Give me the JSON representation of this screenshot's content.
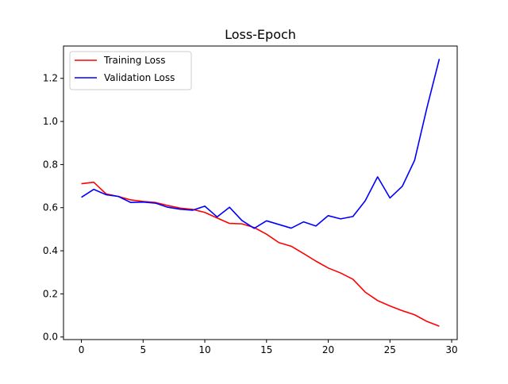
{
  "chart_data": {
    "type": "line",
    "title": "Loss-Epoch",
    "xlabel": "",
    "ylabel": "",
    "xlim": [
      -1.45,
      30.45
    ],
    "ylim": [
      -0.012,
      1.35
    ],
    "xticks": [
      0,
      5,
      10,
      15,
      20,
      25,
      30
    ],
    "xtick_labels": [
      "0",
      "5",
      "10",
      "15",
      "20",
      "25",
      "30"
    ],
    "yticks": [
      0.0,
      0.2,
      0.4,
      0.6,
      0.8,
      1.0,
      1.2
    ],
    "ytick_labels": [
      "0.0",
      "0.2",
      "0.4",
      "0.6",
      "0.8",
      "1.0",
      "1.2"
    ],
    "grid": false,
    "legend_position": "upper-left",
    "x": [
      0,
      1,
      2,
      3,
      4,
      5,
      6,
      7,
      8,
      9,
      10,
      11,
      12,
      13,
      14,
      15,
      16,
      17,
      18,
      19,
      20,
      21,
      22,
      23,
      24,
      25,
      26,
      27,
      28,
      29
    ],
    "series": [
      {
        "name": "Training Loss",
        "color": "#ff0000",
        "values": [
          0.711,
          0.718,
          0.664,
          0.652,
          0.636,
          0.629,
          0.624,
          0.61,
          0.598,
          0.592,
          0.578,
          0.552,
          0.527,
          0.525,
          0.508,
          0.477,
          0.438,
          0.421,
          0.387,
          0.352,
          0.32,
          0.297,
          0.268,
          0.208,
          0.169,
          0.144,
          0.122,
          0.103,
          0.072,
          0.05
        ]
      },
      {
        "name": "Validation Loss",
        "color": "#0000ff",
        "values": [
          0.648,
          0.685,
          0.66,
          0.652,
          0.624,
          0.626,
          0.621,
          0.602,
          0.593,
          0.588,
          0.607,
          0.557,
          0.602,
          0.541,
          0.504,
          0.539,
          0.522,
          0.505,
          0.534,
          0.515,
          0.563,
          0.548,
          0.559,
          0.632,
          0.743,
          0.645,
          0.699,
          0.82,
          1.064,
          1.29
        ]
      }
    ]
  }
}
